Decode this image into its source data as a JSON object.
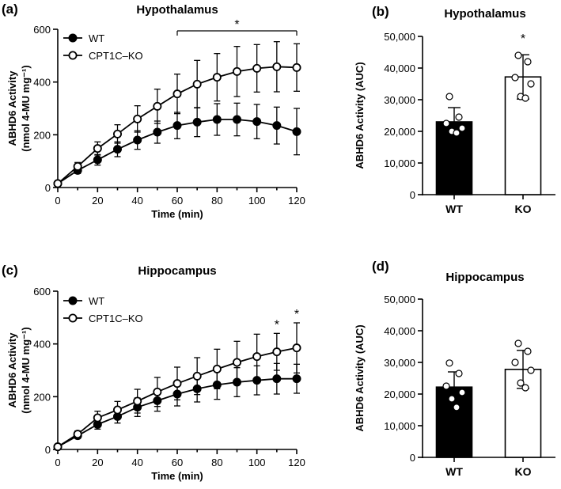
{
  "figure": {
    "panels": [
      {
        "id": "a",
        "panel_label": "(a)",
        "title": "Hypothalamus",
        "ylabel_line1": "ABHD6 Activity",
        "ylabel_line2": "(nmol 4-MU mg⁻¹)",
        "xlabel": "Time (min)",
        "xticks": [
          "0",
          "20",
          "40",
          "60",
          "80",
          "100",
          "120"
        ],
        "yticks": [
          "0",
          "200",
          "400",
          "600"
        ],
        "legend": [
          "WT",
          "CPT1C–KO"
        ],
        "sig_bracket": "*"
      },
      {
        "id": "b",
        "panel_label": "(b)",
        "title": "Hypothalamus",
        "ylabel": "ABHD6 Activity (AUC)",
        "yticks": [
          "0",
          "10,000",
          "20,000",
          "30,000",
          "40,000",
          "50,000"
        ],
        "categories": [
          "WT",
          "KO"
        ],
        "sig": "*"
      },
      {
        "id": "c",
        "panel_label": "(c)",
        "title": "Hippocampus",
        "ylabel_line1": "ABHD6 Activity",
        "ylabel_line2": "(nmol 4-MU mg⁻¹)",
        "xlabel": "Time (min)",
        "xticks": [
          "0",
          "20",
          "40",
          "60",
          "80",
          "100",
          "120"
        ],
        "yticks": [
          "0",
          "200",
          "400",
          "600"
        ],
        "legend": [
          "WT",
          "CPT1C–KO"
        ],
        "sig_marks": [
          "*",
          "*"
        ]
      },
      {
        "id": "d",
        "panel_label": "(d)",
        "title": "Hippocampus",
        "ylabel": "ABHD6 Activity (AUC)",
        "yticks": [
          "0",
          "10,000",
          "20,000",
          "30,000",
          "40,000",
          "50,000"
        ],
        "categories": [
          "WT",
          "KO"
        ]
      }
    ]
  },
  "chart_data": [
    {
      "type": "line",
      "title": "Hypothalamus",
      "xlabel": "Time (min)",
      "ylabel": "ABHD6 Activity (nmol 4-MU mg⁻¹)",
      "xlim": [
        0,
        120
      ],
      "ylim": [
        0,
        600
      ],
      "x": [
        0,
        10,
        20,
        30,
        40,
        50,
        60,
        70,
        80,
        90,
        100,
        110,
        120
      ],
      "series": [
        {
          "name": "WT",
          "marker": "filled",
          "color": "#000000",
          "values": [
            15,
            65,
            105,
            145,
            180,
            210,
            235,
            248,
            258,
            258,
            250,
            235,
            212
          ],
          "sd": [
            8,
            12,
            20,
            28,
            35,
            42,
            50,
            55,
            60,
            62,
            65,
            70,
            88
          ]
        },
        {
          "name": "CPT1C–KO",
          "marker": "open",
          "color": "#000000",
          "values": [
            15,
            80,
            148,
            203,
            260,
            308,
            355,
            392,
            418,
            440,
            452,
            458,
            455
          ],
          "sd": [
            8,
            15,
            25,
            35,
            50,
            65,
            75,
            90,
            90,
            95,
            90,
            95,
            90
          ]
        }
      ],
      "annotations": [
        {
          "text": "*",
          "type": "bracket",
          "x_from": 60,
          "x_to": 120
        }
      ]
    },
    {
      "type": "bar",
      "title": "Hypothalamus",
      "ylabel": "ABHD6 Activity (AUC)",
      "ylim": [
        0,
        50000
      ],
      "categories": [
        "WT",
        "KO"
      ],
      "values": [
        23000,
        37200
      ],
      "sd": [
        4500,
        7000
      ],
      "fill": [
        "#000000",
        "#ffffff"
      ],
      "points": [
        [
          31000,
          24500,
          22500,
          21000,
          20000,
          19500
        ],
        [
          44000,
          42000,
          37000,
          35000,
          31000,
          30500
        ]
      ],
      "annotations": [
        {
          "text": "*",
          "category": "KO"
        }
      ]
    },
    {
      "type": "line",
      "title": "Hippocampus",
      "xlabel": "Time (min)",
      "ylabel": "ABHD6 Activity (nmol 4-MU mg⁻¹)",
      "xlim": [
        0,
        120
      ],
      "ylim": [
        0,
        600
      ],
      "x": [
        0,
        10,
        20,
        30,
        40,
        50,
        60,
        70,
        80,
        90,
        100,
        110,
        120
      ],
      "series": [
        {
          "name": "WT",
          "marker": "filled",
          "color": "#000000",
          "values": [
            10,
            52,
            95,
            125,
            160,
            185,
            210,
            230,
            245,
            255,
            262,
            268,
            268
          ],
          "sd": [
            5,
            10,
            18,
            25,
            35,
            40,
            45,
            50,
            55,
            55,
            55,
            58,
            55
          ]
        },
        {
          "name": "CPT1C–KO",
          "marker": "open",
          "color": "#000000",
          "values": [
            10,
            58,
            120,
            150,
            183,
            218,
            250,
            278,
            305,
            330,
            352,
            370,
            385
          ],
          "sd": [
            5,
            12,
            25,
            32,
            45,
            55,
            62,
            70,
            75,
            80,
            85,
            70,
            95
          ]
        }
      ],
      "annotations": [
        {
          "text": "*",
          "x": 110
        },
        {
          "text": "*",
          "x": 120
        }
      ]
    },
    {
      "type": "bar",
      "title": "Hippocampus",
      "ylabel": "ABHD6 Activity (AUC)",
      "ylim": [
        0,
        50000
      ],
      "categories": [
        "WT",
        "KO"
      ],
      "values": [
        22200,
        27800
      ],
      "sd": [
        4800,
        6000
      ],
      "fill": [
        "#000000",
        "#ffffff"
      ],
      "points": [
        [
          29800,
          26500,
          22500,
          20500,
          18500,
          15800
        ],
        [
          36000,
          33500,
          30000,
          27500,
          23500,
          22000
        ]
      ]
    }
  ]
}
